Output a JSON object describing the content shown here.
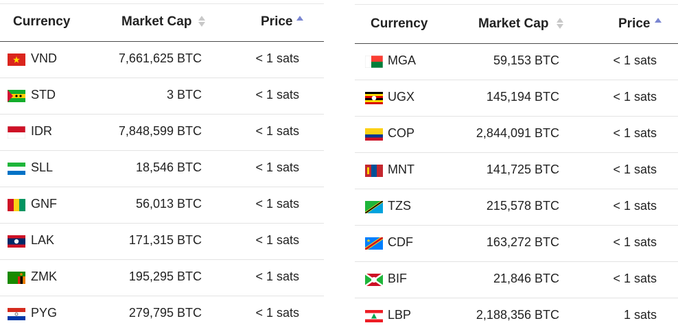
{
  "headers": {
    "currency": "Currency",
    "market_cap": "Market Cap",
    "price": "Price"
  },
  "left": [
    {
      "code": "VND",
      "cap": "7,661,625 BTC",
      "price": "< 1 sats",
      "flag": "vietnam-flag"
    },
    {
      "code": "STD",
      "cap": "3 BTC",
      "price": "< 1 sats",
      "flag": "sao-tome-flag"
    },
    {
      "code": "IDR",
      "cap": "7,848,599 BTC",
      "price": "< 1 sats",
      "flag": "indonesia-flag"
    },
    {
      "code": "SLL",
      "cap": "18,546 BTC",
      "price": "< 1 sats",
      "flag": "sierra-leone-flag"
    },
    {
      "code": "GNF",
      "cap": "56,013 BTC",
      "price": "< 1 sats",
      "flag": "guinea-flag"
    },
    {
      "code": "LAK",
      "cap": "171,315 BTC",
      "price": "< 1 sats",
      "flag": "laos-flag"
    },
    {
      "code": "ZMK",
      "cap": "195,295 BTC",
      "price": "< 1 sats",
      "flag": "zambia-flag"
    },
    {
      "code": "PYG",
      "cap": "279,795 BTC",
      "price": "< 1 sats",
      "flag": "paraguay-flag"
    }
  ],
  "right": [
    {
      "code": "MGA",
      "cap": "59,153 BTC",
      "price": "< 1 sats",
      "flag": "madagascar-flag"
    },
    {
      "code": "UGX",
      "cap": "145,194 BTC",
      "price": "< 1 sats",
      "flag": "uganda-flag"
    },
    {
      "code": "COP",
      "cap": "2,844,091 BTC",
      "price": "< 1 sats",
      "flag": "colombia-flag"
    },
    {
      "code": "MNT",
      "cap": "141,725 BTC",
      "price": "< 1 sats",
      "flag": "mongolia-flag"
    },
    {
      "code": "TZS",
      "cap": "215,578 BTC",
      "price": "< 1 sats",
      "flag": "tanzania-flag"
    },
    {
      "code": "CDF",
      "cap": "163,272 BTC",
      "price": "< 1 sats",
      "flag": "dr-congo-flag"
    },
    {
      "code": "BIF",
      "cap": "21,846 BTC",
      "price": "< 1 sats",
      "flag": "burundi-flag"
    },
    {
      "code": "LBP",
      "cap": "2,188,356 BTC",
      "price": "1 sats",
      "flag": "lebanon-flag"
    }
  ]
}
